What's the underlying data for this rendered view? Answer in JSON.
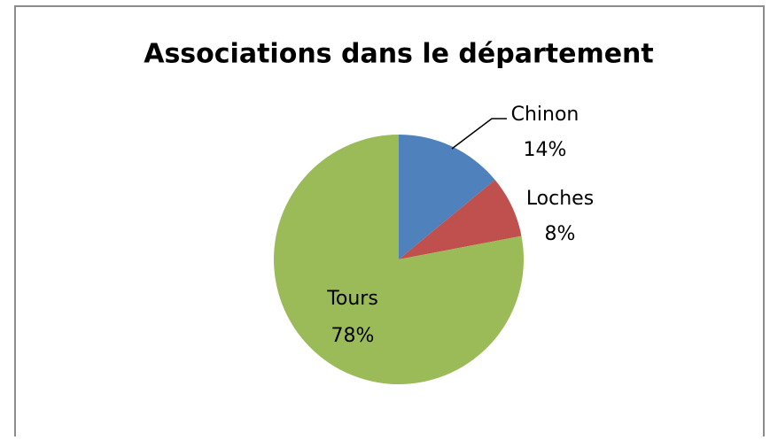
{
  "chart_data": {
    "type": "pie",
    "title": "Associations dans le département",
    "categories": [
      "Chinon",
      "Loches",
      "Tours"
    ],
    "values": [
      14,
      8,
      78
    ],
    "value_labels": [
      "14%",
      "8%",
      "78%"
    ],
    "colors": [
      "#4f81bd",
      "#c0504d",
      "#9bbb59"
    ]
  }
}
